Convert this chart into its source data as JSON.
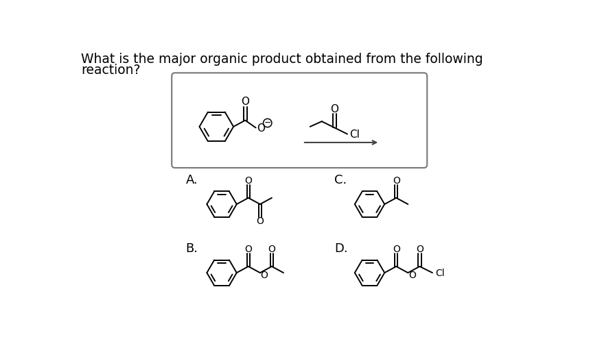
{
  "title_line1": "What is the major organic product obtained from the following",
  "title_line2": "reaction?",
  "title_fontsize": 13.5,
  "bg_color": "#ffffff",
  "line_color": "#000000",
  "box_color": "#888888",
  "label_A": "A.",
  "label_B": "B.",
  "label_C": "C.",
  "label_D": "D.",
  "label_fontsize": 13
}
